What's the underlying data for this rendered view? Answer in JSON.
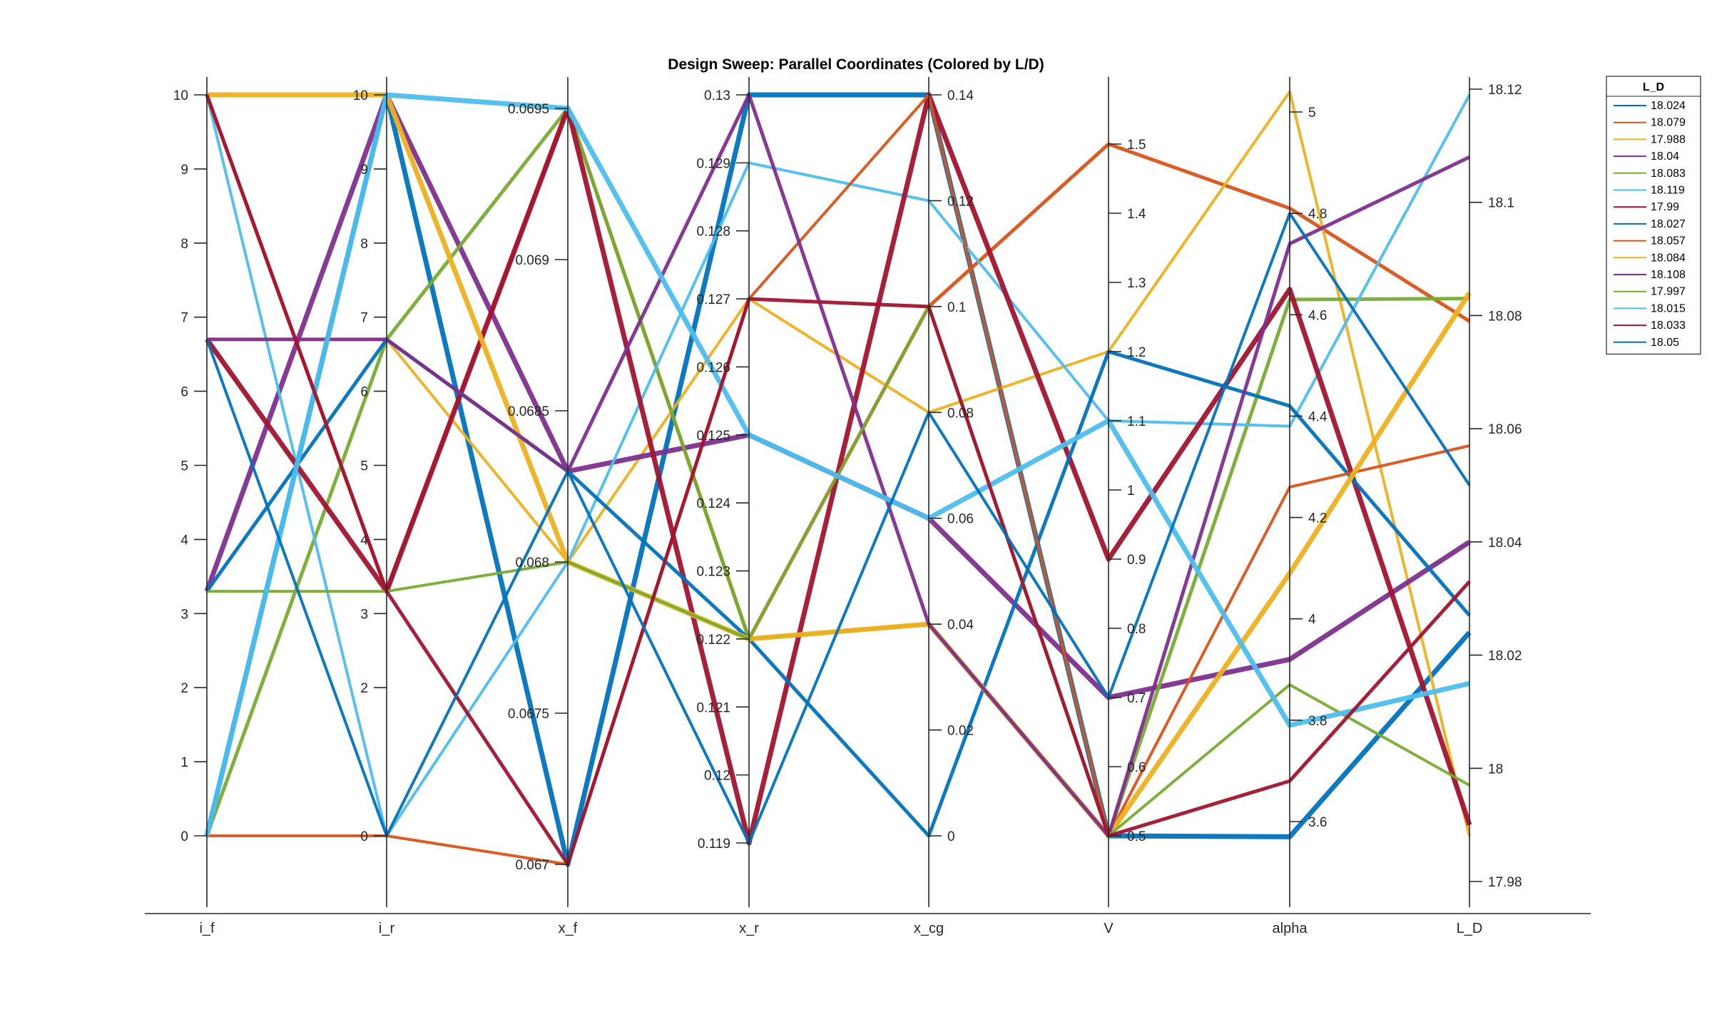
{
  "chart_data": {
    "type": "parallel-coordinates",
    "title": "Design Sweep: Parallel Coordinates (Colored by L/D)",
    "legend": {
      "title": "L_D",
      "placement": "top-right-outside"
    },
    "axes": [
      {
        "name": "i_f",
        "range": [
          -1,
          10.2
        ],
        "ticks": [
          0,
          1,
          2,
          3,
          4,
          5,
          6,
          7,
          8,
          9,
          10
        ]
      },
      {
        "name": "i_r",
        "range": [
          -1,
          10.2
        ],
        "ticks": [
          0,
          2,
          3,
          4,
          5,
          6,
          7,
          8,
          9,
          10
        ]
      },
      {
        "name": "x_f",
        "range": [
          0.06695,
          0.06953
        ],
        "ticks": [
          0.067,
          0.0675,
          0.068,
          0.0685,
          0.069,
          0.0695
        ]
      },
      {
        "name": "x_r",
        "range": [
          0.119,
          0.13
        ],
        "ticks": [
          0.119,
          0.12,
          0.121,
          0.122,
          0.123,
          0.124,
          0.125,
          0.126,
          0.127,
          0.128,
          0.129,
          0.13
        ]
      },
      {
        "name": "x_cg",
        "range": [
          0,
          0.14
        ],
        "ticks": [
          0,
          0.02,
          0.04,
          0.06,
          0.08,
          0.1,
          0.12,
          0.14
        ]
      },
      {
        "name": "V",
        "range": [
          0.4,
          1.6
        ],
        "ticks": [
          0.5,
          0.6,
          0.7,
          0.8,
          0.9,
          1,
          1.1,
          1.2,
          1.3,
          1.4,
          1.5
        ]
      },
      {
        "name": "alpha",
        "range": [
          3.5,
          5.03
        ],
        "ticks": [
          3.6,
          3.8,
          4,
          4.2,
          4.4,
          4.6,
          4.8,
          5
        ]
      },
      {
        "name": "L_D",
        "range": [
          17.98,
          18.12
        ],
        "ticks": [
          17.98,
          18,
          18.02,
          18.04,
          18.06,
          18.08,
          18.1,
          18.12
        ]
      }
    ],
    "series": [
      {
        "name": "18.024",
        "color": "#0072BD",
        "values": [
          0,
          10,
          0.067,
          0.13,
          0.14,
          0.5,
          3.57,
          18.024
        ]
      },
      {
        "name": "18.079",
        "color": "#D95319",
        "values": [
          10,
          3.3,
          0.0695,
          0.122,
          0.1,
          1.5,
          4.81,
          18.079
        ]
      },
      {
        "name": "17.988",
        "color": "#EDB120",
        "values": [
          6.7,
          6.7,
          0.068,
          0.127,
          0.08,
          1.2,
          5.04,
          17.988
        ]
      },
      {
        "name": "18.04",
        "color": "#7E2F8E",
        "values": [
          3.3,
          10,
          0.0683,
          0.125,
          0.06,
          0.7,
          3.92,
          18.04
        ]
      },
      {
        "name": "18.083",
        "color": "#77AC30",
        "values": [
          0,
          6.7,
          0.0695,
          0.122,
          0.04,
          0.5,
          4.63,
          18.083
        ]
      },
      {
        "name": "18.119",
        "color": "#4DBEEE",
        "values": [
          10,
          0,
          0.068,
          0.129,
          0.12,
          1.1,
          4.38,
          18.119
        ]
      },
      {
        "name": "17.99",
        "color": "#A2142F",
        "values": [
          6.7,
          3.3,
          0.0695,
          0.119,
          0.14,
          0.9,
          4.65,
          17.99
        ]
      },
      {
        "name": "18.027",
        "color": "#0072BD",
        "values": [
          3.3,
          6.7,
          0.0683,
          0.122,
          0,
          1.2,
          4.42,
          18.027
        ]
      },
      {
        "name": "18.057",
        "color": "#D95319",
        "values": [
          0,
          0,
          0.067,
          0.127,
          0.14,
          0.5,
          4.26,
          18.057
        ]
      },
      {
        "name": "18.084",
        "color": "#EDB120",
        "values": [
          10,
          10,
          0.068,
          0.122,
          0.04,
          0.5,
          4.09,
          18.084
        ]
      },
      {
        "name": "18.108",
        "color": "#7E2F8E",
        "values": [
          6.7,
          6.7,
          0.0683,
          0.13,
          0.04,
          0.5,
          4.74,
          18.108
        ]
      },
      {
        "name": "17.997",
        "color": "#77AC30",
        "values": [
          3.3,
          3.3,
          0.068,
          0.122,
          0.1,
          0.5,
          3.87,
          17.997
        ]
      },
      {
        "name": "18.015",
        "color": "#4DBEEE",
        "values": [
          0,
          10,
          0.0695,
          0.125,
          0.06,
          1.1,
          3.79,
          18.015
        ]
      },
      {
        "name": "18.033",
        "color": "#A2142F",
        "values": [
          10,
          3.3,
          0.067,
          0.127,
          0.1,
          0.5,
          3.68,
          18.033
        ]
      },
      {
        "name": "18.05",
        "color": "#0072BD",
        "values": [
          6.7,
          0,
          0.0683,
          0.119,
          0.08,
          0.7,
          4.8,
          18.05
        ]
      }
    ]
  }
}
